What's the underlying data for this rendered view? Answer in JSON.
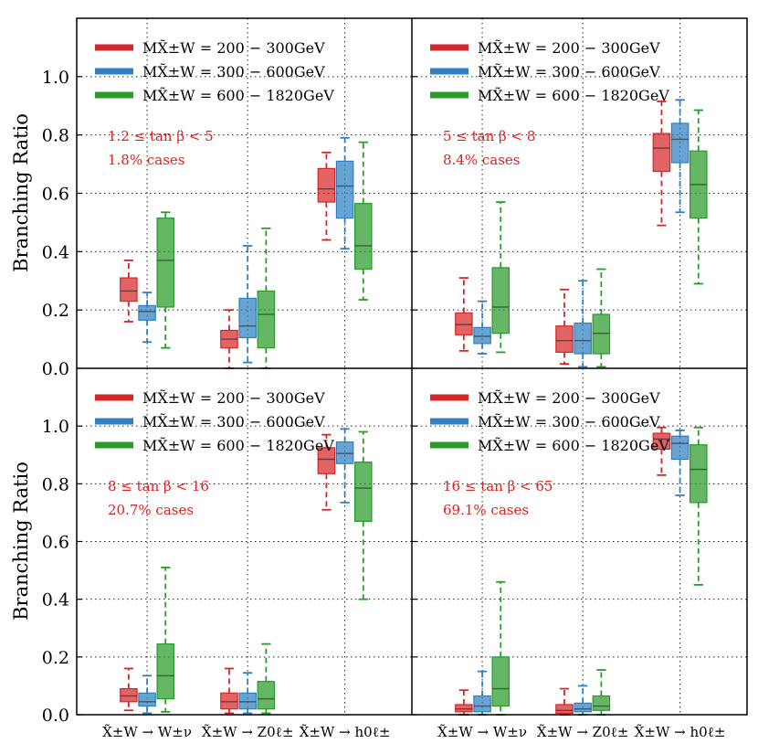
{
  "chart_data": {
    "type": "box",
    "title": "",
    "ylabel": "Branching Ratio",
    "ylim": [
      0,
      1.2
    ],
    "yticks": [
      "0.0",
      "0.2",
      "0.4",
      "0.6",
      "0.8",
      "1.0"
    ],
    "categories": [
      "X̃±W → W±ν",
      "X̃±W → Z0ℓ±",
      "X̃±W → h0ℓ±"
    ],
    "legend": [
      {
        "label": "MX̃±W = 200 − 300GeV",
        "color": "#d62728"
      },
      {
        "label": "MX̃±W = 300 − 600GeV",
        "color": "#2f7fc1"
      },
      {
        "label": "MX̃±W = 600 − 1820GeV",
        "color": "#2a9a2a"
      }
    ],
    "colors": [
      "#d62728",
      "#2f7fc1",
      "#2a9a2a"
    ],
    "panels": [
      {
        "id": "top-left",
        "annotation": [
          "1.2 ≤ tan β < 5",
          "1.8% cases"
        ],
        "groups": [
          [
            {
              "whislo": 0.16,
              "q1": 0.23,
              "med": 0.265,
              "q3": 0.31,
              "whishi": 0.37
            },
            {
              "whislo": 0.09,
              "q1": 0.165,
              "med": 0.195,
              "q3": 0.215,
              "whishi": 0.26
            },
            {
              "whislo": 0.07,
              "q1": 0.21,
              "med": 0.37,
              "q3": 0.515,
              "whishi": 0.535
            }
          ],
          [
            {
              "whislo": 0.0,
              "q1": 0.07,
              "med": 0.1,
              "q3": 0.13,
              "whishi": 0.2
            },
            {
              "whislo": 0.02,
              "q1": 0.105,
              "med": 0.145,
              "q3": 0.24,
              "whishi": 0.42
            },
            {
              "whislo": 0.0,
              "q1": 0.07,
              "med": 0.185,
              "q3": 0.265,
              "whishi": 0.48
            }
          ],
          [
            {
              "whislo": 0.44,
              "q1": 0.57,
              "med": 0.615,
              "q3": 0.685,
              "whishi": 0.74
            },
            {
              "whislo": 0.41,
              "q1": 0.515,
              "med": 0.625,
              "q3": 0.71,
              "whishi": 0.79
            },
            {
              "whislo": 0.235,
              "q1": 0.34,
              "med": 0.42,
              "q3": 0.565,
              "whishi": 0.775
            }
          ]
        ]
      },
      {
        "id": "top-right",
        "annotation": [
          "5 ≤ tan β < 8",
          "8.4% cases"
        ],
        "groups": [
          [
            {
              "whislo": 0.06,
              "q1": 0.115,
              "med": 0.15,
              "q3": 0.19,
              "whishi": 0.31
            },
            {
              "whislo": 0.05,
              "q1": 0.085,
              "med": 0.11,
              "q3": 0.14,
              "whishi": 0.23
            },
            {
              "whislo": 0.055,
              "q1": 0.12,
              "med": 0.21,
              "q3": 0.345,
              "whishi": 0.57
            }
          ],
          [
            {
              "whislo": 0.015,
              "q1": 0.055,
              "med": 0.095,
              "q3": 0.145,
              "whishi": 0.27
            },
            {
              "whislo": 0.005,
              "q1": 0.05,
              "med": 0.095,
              "q3": 0.155,
              "whishi": 0.3
            },
            {
              "whislo": 0.005,
              "q1": 0.05,
              "med": 0.12,
              "q3": 0.185,
              "whishi": 0.34
            }
          ],
          [
            {
              "whislo": 0.49,
              "q1": 0.675,
              "med": 0.755,
              "q3": 0.805,
              "whishi": 0.915
            },
            {
              "whislo": 0.535,
              "q1": 0.705,
              "med": 0.785,
              "q3": 0.84,
              "whishi": 0.92
            },
            {
              "whislo": 0.29,
              "q1": 0.515,
              "med": 0.63,
              "q3": 0.745,
              "whishi": 0.885
            }
          ]
        ]
      },
      {
        "id": "bottom-left",
        "annotation": [
          "8 ≤ tan β < 16",
          "20.7% cases"
        ],
        "groups": [
          [
            {
              "whislo": 0.015,
              "q1": 0.045,
              "med": 0.065,
              "q3": 0.09,
              "whishi": 0.16
            },
            {
              "whislo": 0.005,
              "q1": 0.03,
              "med": 0.045,
              "q3": 0.075,
              "whishi": 0.135
            },
            {
              "whislo": 0.01,
              "q1": 0.055,
              "med": 0.135,
              "q3": 0.245,
              "whishi": 0.51
            }
          ],
          [
            {
              "whislo": 0.005,
              "q1": 0.02,
              "med": 0.045,
              "q3": 0.075,
              "whishi": 0.16
            },
            {
              "whislo": 0.005,
              "q1": 0.02,
              "med": 0.045,
              "q3": 0.075,
              "whishi": 0.145
            },
            {
              "whislo": 0.005,
              "q1": 0.02,
              "med": 0.055,
              "q3": 0.115,
              "whishi": 0.245
            }
          ],
          [
            {
              "whislo": 0.71,
              "q1": 0.835,
              "med": 0.885,
              "q3": 0.925,
              "whishi": 0.97
            },
            {
              "whislo": 0.735,
              "q1": 0.87,
              "med": 0.905,
              "q3": 0.945,
              "whishi": 0.99
            },
            {
              "whislo": 0.4,
              "q1": 0.67,
              "med": 0.785,
              "q3": 0.875,
              "whishi": 0.98
            }
          ]
        ]
      },
      {
        "id": "bottom-right",
        "annotation": [
          "16 ≤ tan β < 65",
          "69.1% cases"
        ],
        "groups": [
          [
            {
              "whislo": 0.0,
              "q1": 0.01,
              "med": 0.02,
              "q3": 0.035,
              "whishi": 0.085
            },
            {
              "whislo": 0.0,
              "q1": 0.01,
              "med": 0.03,
              "q3": 0.065,
              "whishi": 0.15
            },
            {
              "whislo": 0.0,
              "q1": 0.03,
              "med": 0.09,
              "q3": 0.2,
              "whishi": 0.46
            }
          ],
          [
            {
              "whislo": 0.0,
              "q1": 0.005,
              "med": 0.015,
              "q3": 0.035,
              "whishi": 0.09
            },
            {
              "whislo": 0.0,
              "q1": 0.01,
              "med": 0.02,
              "q3": 0.04,
              "whishi": 0.1
            },
            {
              "whislo": 0.0,
              "q1": 0.015,
              "med": 0.03,
              "q3": 0.065,
              "whishi": 0.155
            }
          ],
          [
            {
              "whislo": 0.83,
              "q1": 0.92,
              "med": 0.955,
              "q3": 0.975,
              "whishi": 0.995
            },
            {
              "whislo": 0.76,
              "q1": 0.885,
              "med": 0.94,
              "q3": 0.965,
              "whishi": 0.985
            },
            {
              "whislo": 0.45,
              "q1": 0.735,
              "med": 0.85,
              "q3": 0.935,
              "whishi": 0.995
            }
          ]
        ]
      }
    ]
  }
}
